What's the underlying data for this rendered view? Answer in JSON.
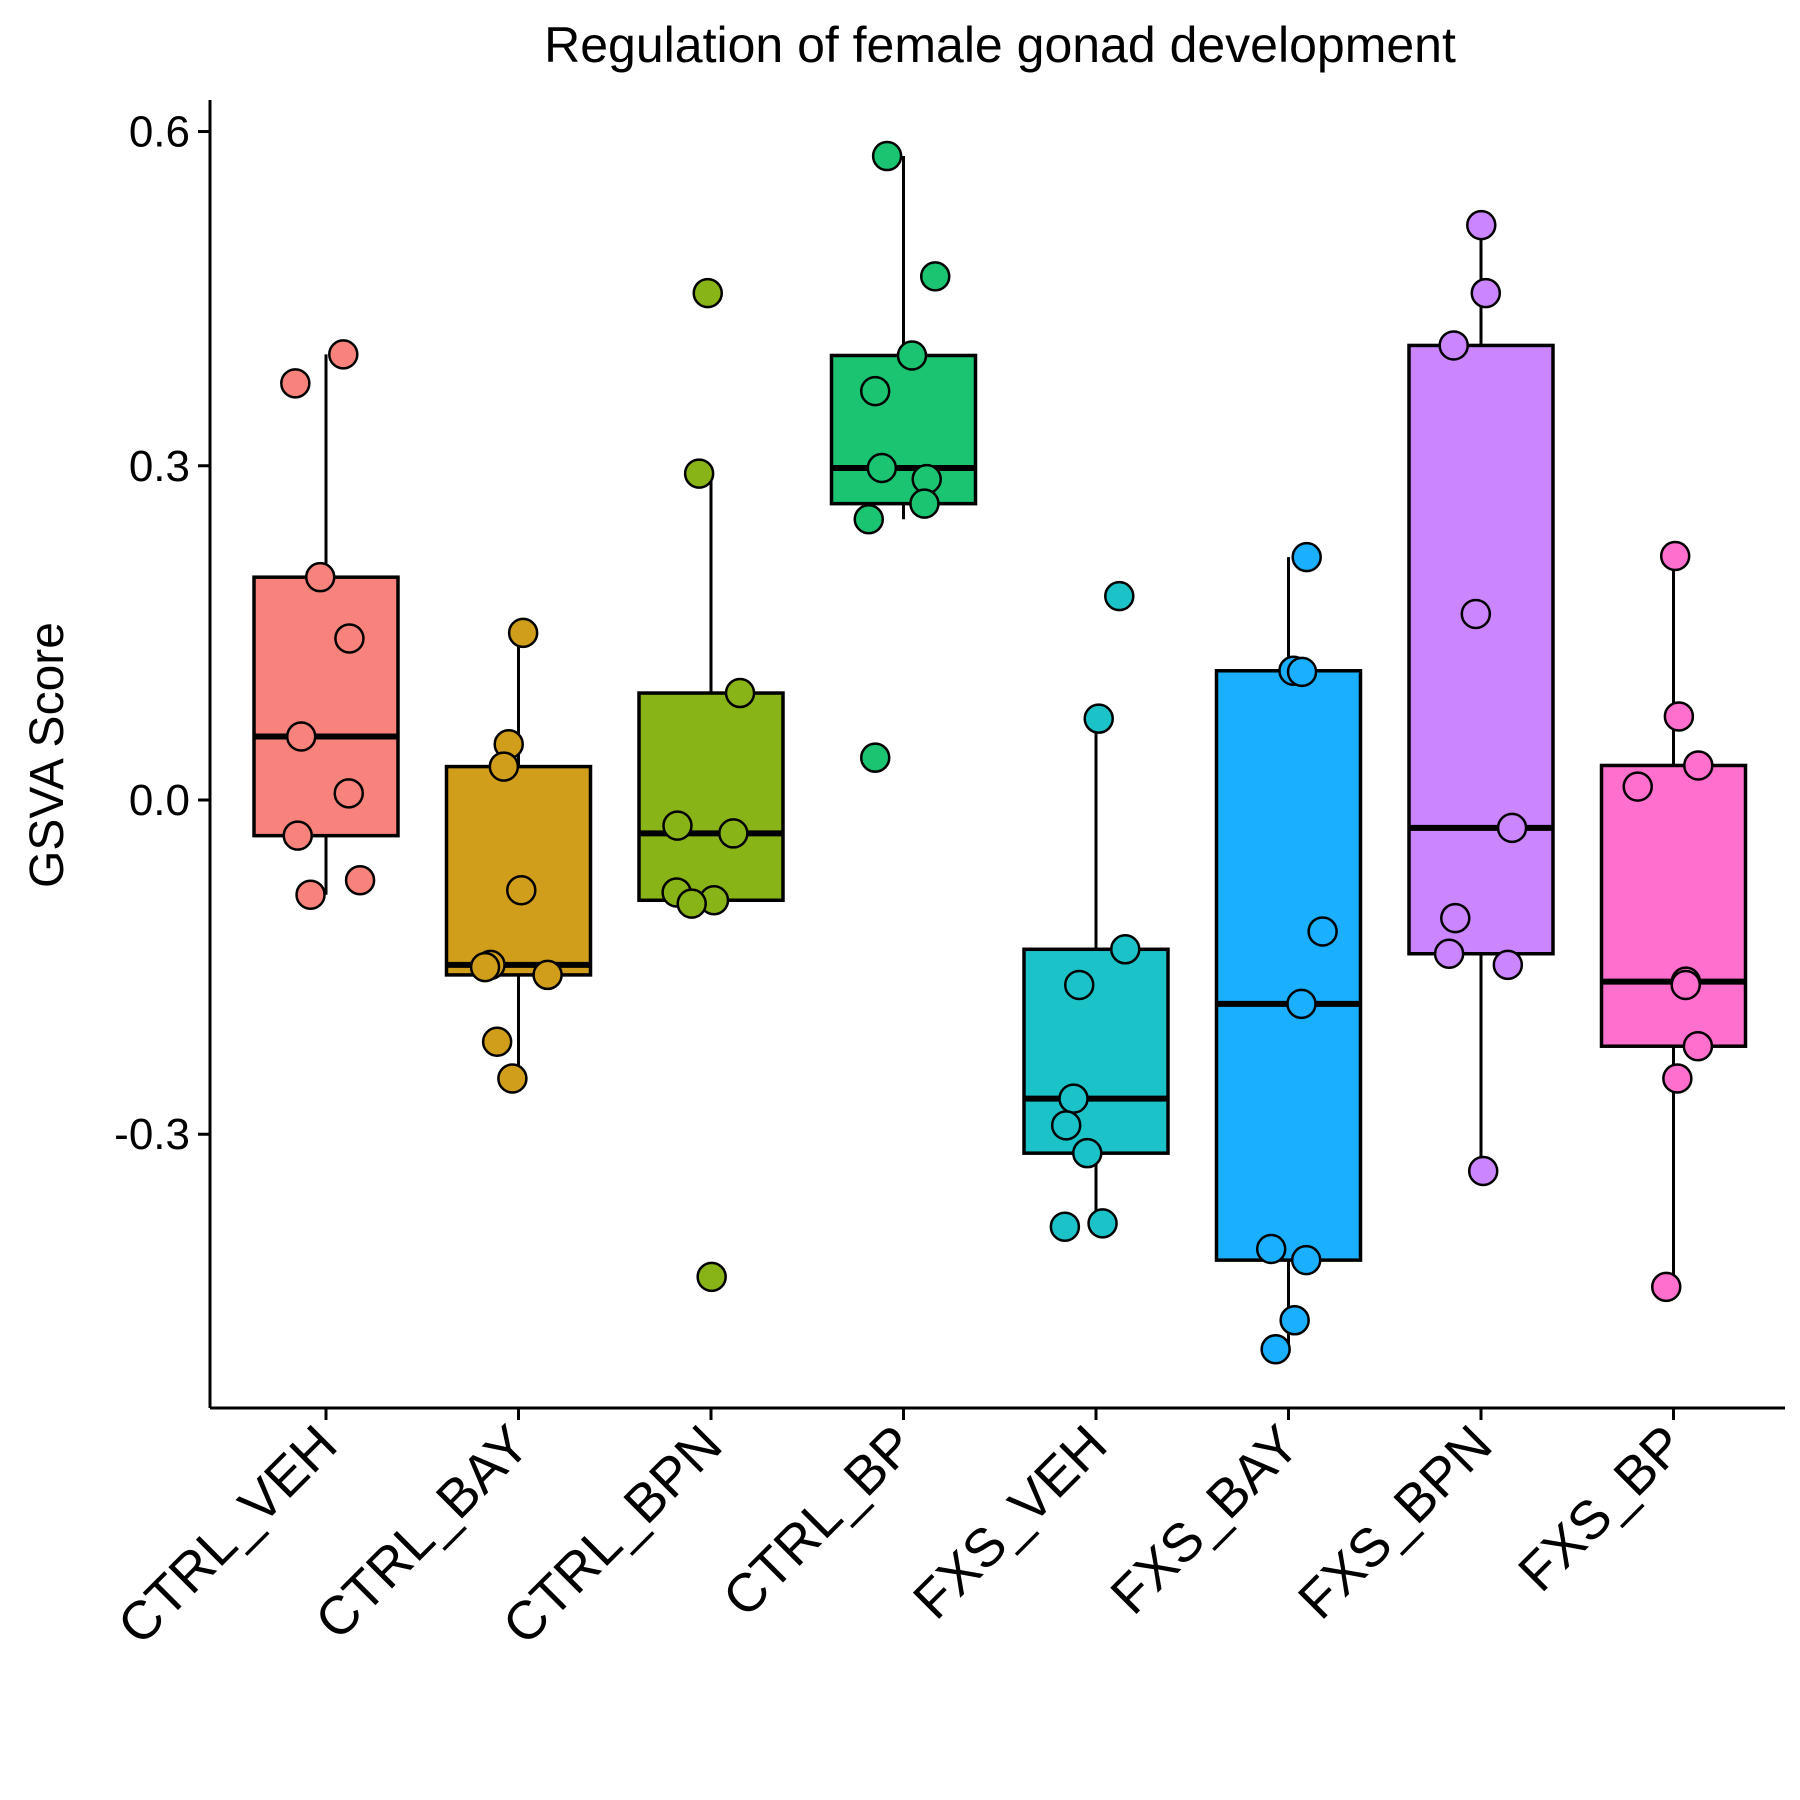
{
  "chart_data": {
    "type": "box",
    "title": "Regulation of female gonad development",
    "xlabel": "",
    "ylabel": "GSVA Score",
    "ylim": [
      -0.55,
      0.63
    ],
    "yticks": [
      {
        "value": 0.6,
        "label": "0.6"
      },
      {
        "value": 0.3,
        "label": "0.3"
      },
      {
        "value": 0.0,
        "label": "0.0"
      },
      {
        "value": -0.3,
        "label": "-0.3"
      }
    ],
    "grid": false,
    "legend": "none",
    "categories": [
      "CTRL_VEH",
      "CTRL_BAY",
      "CTRL_BPN",
      "CTRL_BP",
      "FXS_VEH",
      "FXS_BAY",
      "FXS_BPN",
      "FXS_BP"
    ],
    "colors": [
      "#F8837C",
      "#D09E1B",
      "#89B418",
      "#1BC471",
      "#1BC3C8",
      "#1AB0FF",
      "#CB86FF",
      "#FF6FCD"
    ],
    "boxes": [
      {
        "min": -0.085,
        "q1": -0.032,
        "median": 0.057,
        "q3": 0.2,
        "max": 0.4
      },
      {
        "min": -0.25,
        "q1": -0.157,
        "median": -0.148,
        "q3": 0.03,
        "max": 0.15
      },
      {
        "min": -0.093,
        "q1": -0.09,
        "median": -0.03,
        "q3": 0.096,
        "max": 0.293
      },
      {
        "min": 0.252,
        "q1": 0.266,
        "median": 0.298,
        "q3": 0.399,
        "max": 0.578
      },
      {
        "min": -0.383,
        "q1": -0.317,
        "median": -0.268,
        "q3": -0.134,
        "max": 0.073
      },
      {
        "min": -0.493,
        "q1": -0.413,
        "median": -0.183,
        "q3": 0.116,
        "max": 0.218
      },
      {
        "min": -0.333,
        "q1": -0.138,
        "median": -0.025,
        "q3": 0.408,
        "max": 0.516
      },
      {
        "min": -0.437,
        "q1": -0.221,
        "median": -0.163,
        "q3": 0.031,
        "max": 0.219
      }
    ],
    "points": [
      [
        0.4,
        0.374,
        0.2,
        0.145,
        0.057,
        0.006,
        -0.032,
        -0.072,
        -0.085
      ],
      [
        0.15,
        0.05,
        0.03,
        -0.081,
        -0.148,
        -0.15,
        -0.157,
        -0.217,
        -0.25
      ],
      [
        0.455,
        0.293,
        0.096,
        -0.023,
        -0.03,
        -0.083,
        -0.09,
        -0.093,
        -0.428
      ],
      [
        0.578,
        0.47,
        0.399,
        0.367,
        0.298,
        0.288,
        0.266,
        0.252,
        0.038
      ],
      [
        0.183,
        0.073,
        -0.134,
        -0.166,
        -0.268,
        -0.292,
        -0.317,
        -0.383,
        -0.38
      ],
      [
        0.218,
        0.116,
        0.115,
        -0.118,
        -0.183,
        -0.403,
        -0.413,
        -0.467,
        -0.493
      ],
      [
        0.516,
        0.455,
        0.408,
        0.167,
        -0.025,
        -0.106,
        -0.138,
        -0.148,
        -0.333
      ],
      [
        0.219,
        0.075,
        0.031,
        0.012,
        -0.163,
        -0.166,
        -0.221,
        -0.25,
        -0.437
      ]
    ]
  }
}
